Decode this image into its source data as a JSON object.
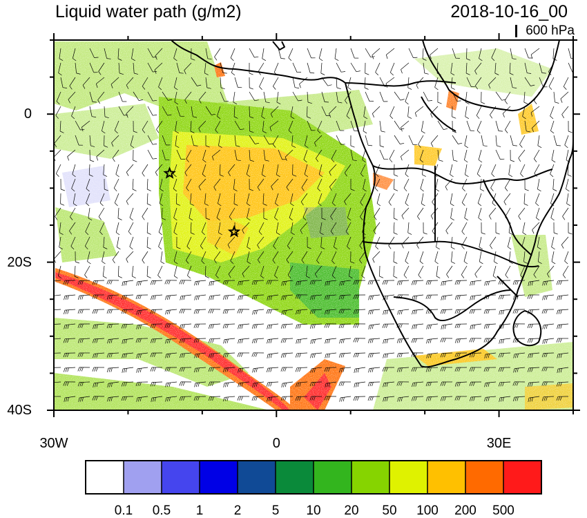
{
  "title": "Liquid water path (g/m2)",
  "datetime": "2018-10-16_00",
  "reference_vector_label": "600 hPa",
  "map": {
    "lon_range": [
      -30,
      40
    ],
    "lat_range": [
      -40,
      10
    ],
    "x_ticks": [
      {
        "value": -30,
        "label": "30W"
      },
      {
        "value": 0,
        "label": "0"
      },
      {
        "value": 30,
        "label": "30E"
      }
    ],
    "y_ticks": [
      {
        "value": 0,
        "label": "0"
      },
      {
        "value": -20,
        "label": "20S"
      },
      {
        "value": -40,
        "label": "40S"
      }
    ],
    "markers": [
      {
        "type": "star",
        "lon": -14.4,
        "lat": -8.0
      },
      {
        "type": "star",
        "lon": -5.7,
        "lat": -15.9
      }
    ]
  },
  "colorbar": {
    "colors": [
      "#ffffff",
      "#a0a0f0",
      "#4545ee",
      "#0000e6",
      "#104a96",
      "#0a8a3a",
      "#33b51e",
      "#86d400",
      "#dff200",
      "#ffc000",
      "#ff6a00",
      "#ff1a1a"
    ],
    "labels": [
      "0.1",
      "0.5",
      "1",
      "2",
      "5",
      "10",
      "20",
      "50",
      "100",
      "200",
      "500"
    ]
  }
}
